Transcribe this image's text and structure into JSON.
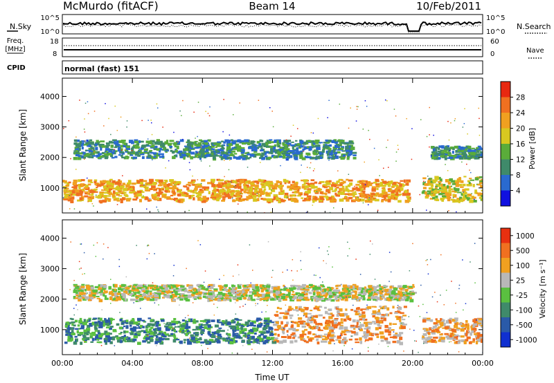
{
  "header": {
    "station": "McMurdo (fitACF)",
    "beam": "Beam 14",
    "date": "10/Feb/2011"
  },
  "status_panels": {
    "nsky_label": "N.Sky",
    "nsearch_label": "N.Search",
    "nsky_ticks": [
      "10^5",
      "10^0"
    ],
    "nsearch_ticks": [
      "10^5",
      "10^0"
    ],
    "freq_label_1": "Freq.",
    "freq_label_2": "[MHz]",
    "freq_ticks": [
      "18",
      "8"
    ],
    "nave_label": "Nave",
    "nave_ticks": [
      "60",
      "0"
    ],
    "cpid_label": "CPID",
    "cpid_value": "normal (fast) 151"
  },
  "chart_data": [
    {
      "type": "heatmap",
      "panel": "power",
      "ylabel": "Slant Range [km]",
      "xlabel": "Time UT",
      "x_range_hours": [
        0,
        24
      ],
      "ylim": [
        180,
        4600
      ],
      "yticks": [
        "1000",
        "2000",
        "3000",
        "4000"
      ],
      "xticks": [
        "00:00",
        "04:00",
        "08:00",
        "12:00",
        "16:00",
        "20:00",
        "00:00"
      ],
      "colorbar": {
        "label": "Power [dB]",
        "ticks": [
          "4",
          "8",
          "12",
          "16",
          "20",
          "24",
          "28"
        ],
        "colors": [
          "#1010e0",
          "#2a6ad0",
          "#3f8a6a",
          "#5aac3a",
          "#d8c820",
          "#f0a020",
          "#f07020",
          "#e82810"
        ]
      },
      "bands": [
        {
          "t0": 0.0,
          "t1": 19.7,
          "r0": 600,
          "r1": 1300,
          "level": 5
        },
        {
          "t0": 0.6,
          "t1": 16.6,
          "r0": 2000,
          "r1": 2600,
          "level": 2
        },
        {
          "t0": 20.5,
          "t1": 24.0,
          "r0": 600,
          "r1": 1400,
          "level": 4
        },
        {
          "t0": 21.0,
          "t1": 24.0,
          "r0": 2000,
          "r1": 2400,
          "level": 2
        }
      ]
    },
    {
      "type": "heatmap",
      "panel": "velocity",
      "ylabel": "Slant Range [km]",
      "xlabel": "Time UT",
      "x_range_hours": [
        0,
        24
      ],
      "ylim": [
        180,
        4600
      ],
      "yticks": [
        "1000",
        "2000",
        "3000",
        "4000"
      ],
      "xticks": [
        "00:00",
        "04:00",
        "08:00",
        "12:00",
        "16:00",
        "20:00",
        "00:00"
      ],
      "colorbar": {
        "label": "Velocity [m s⁻¹]",
        "ticks": [
          "1000",
          "500",
          "100",
          "25",
          "-25",
          "-100",
          "-500",
          "-1000"
        ],
        "colors": [
          "#1030d0",
          "#2a5aa8",
          "#3f8a6a",
          "#5ac040",
          "#b8b8b8",
          "#f0a020",
          "#f07020",
          "#e83010"
        ]
      },
      "bands": [
        {
          "t0": 0.0,
          "t1": 12.0,
          "r0": 600,
          "r1": 1400,
          "level": 2
        },
        {
          "t0": 12.0,
          "t1": 19.5,
          "r0": 600,
          "r1": 1800,
          "level": 5
        },
        {
          "t0": 0.6,
          "t1": 20.0,
          "r0": 2000,
          "r1": 2500,
          "level": 4
        },
        {
          "t0": 20.5,
          "t1": 24.0,
          "r0": 600,
          "r1": 1400,
          "level": 5
        }
      ]
    }
  ]
}
